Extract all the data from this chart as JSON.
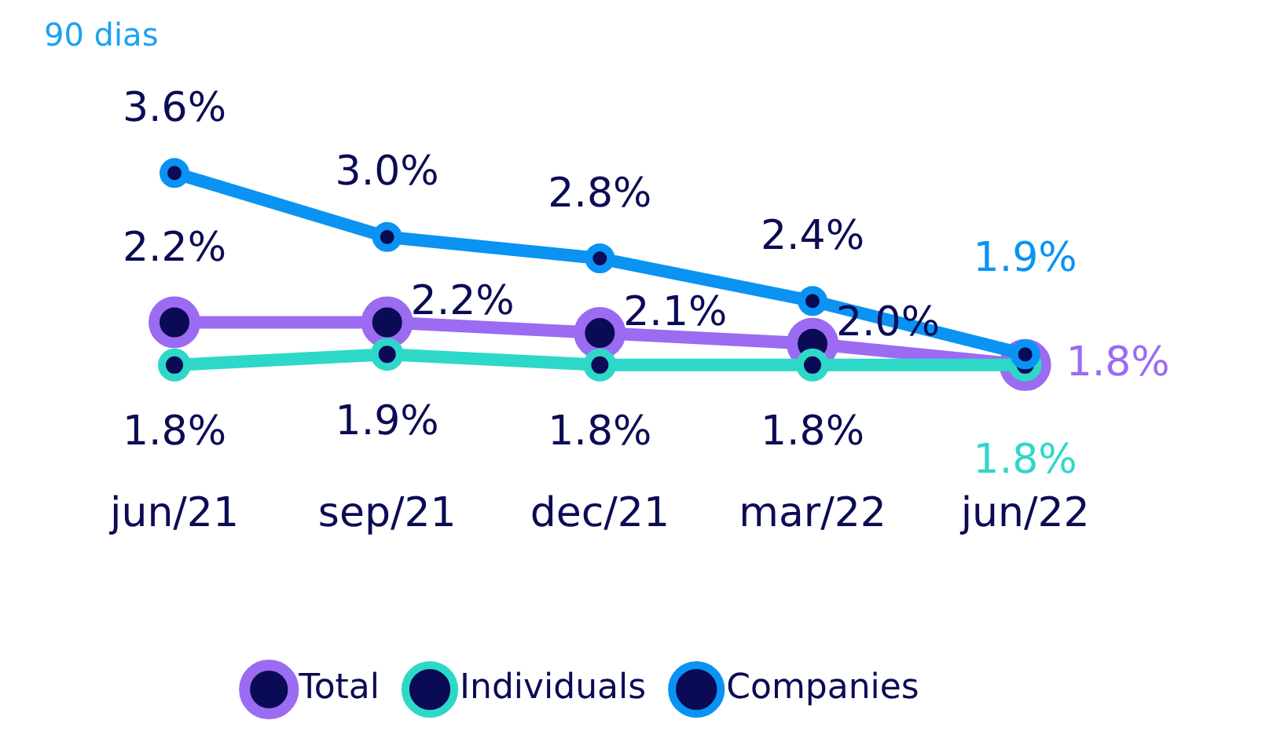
{
  "chart_data": {
    "type": "line",
    "subtitle": "90 dias",
    "categories": [
      "jun/21",
      "sep/21",
      "dec/21",
      "mar/22",
      "jun/22"
    ],
    "series": [
      {
        "name": "Total",
        "color": "#9b6bf2",
        "values": [
          2.2,
          2.2,
          2.1,
          2.0,
          1.8
        ],
        "value_labels": [
          "2.2%",
          "2.2%",
          "2.1%",
          "2.0%",
          "1.8%"
        ]
      },
      {
        "name": "Individuals",
        "color": "#2ed8c8",
        "values": [
          1.8,
          1.9,
          1.8,
          1.8,
          1.8
        ],
        "value_labels": [
          "1.8%",
          "1.9%",
          "1.8%",
          "1.8%",
          "1.8%"
        ]
      },
      {
        "name": "Companies",
        "color": "#0a93f2",
        "values": [
          3.6,
          3.0,
          2.8,
          2.4,
          1.9
        ],
        "value_labels": [
          "3.6%",
          "3.0%",
          "2.8%",
          "2.4%",
          "1.9%"
        ]
      }
    ],
    "marker": "circle",
    "line_style": "solid",
    "grid": false,
    "legend": "bottom"
  }
}
